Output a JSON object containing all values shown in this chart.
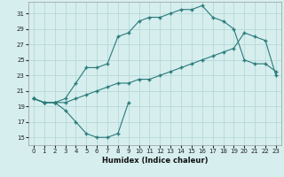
{
  "background_color": "#d6eeee",
  "grid_color": "#b8d8d8",
  "line_color": "#2a7a7a",
  "xlabel": "Humidex (Indice chaleur)",
  "xlim": [
    -0.5,
    23.5
  ],
  "ylim": [
    14.0,
    32.5
  ],
  "xticks": [
    0,
    1,
    2,
    3,
    4,
    5,
    6,
    7,
    8,
    9,
    10,
    11,
    12,
    13,
    14,
    15,
    16,
    17,
    18,
    19,
    20,
    21,
    22,
    23
  ],
  "yticks": [
    15,
    17,
    19,
    21,
    23,
    25,
    27,
    29,
    31
  ],
  "curve_top_x": [
    0,
    1,
    2,
    3,
    4,
    5,
    6,
    7,
    8,
    9,
    10,
    11,
    12,
    13,
    14,
    15,
    16,
    17,
    18,
    19,
    20,
    21,
    22,
    23
  ],
  "curve_top_y": [
    20,
    19.5,
    19.5,
    20,
    22,
    24,
    24,
    24.5,
    28,
    28.5,
    30,
    30.5,
    30.5,
    31,
    31.5,
    31.5,
    32,
    30.5,
    30,
    29,
    25,
    24.5,
    24.5,
    23.5
  ],
  "curve_mid_x": [
    0,
    1,
    2,
    3,
    4,
    5,
    6,
    7,
    8,
    9,
    10,
    11,
    12,
    13,
    14,
    15,
    16,
    17,
    18,
    19,
    20,
    21,
    22,
    23
  ],
  "curve_mid_y": [
    20,
    19.5,
    19.5,
    19.5,
    20,
    20.5,
    21,
    21.5,
    22,
    22,
    22.5,
    22.5,
    23,
    23.5,
    24,
    24.5,
    25,
    25.5,
    26,
    26.5,
    28.5,
    28,
    27.5,
    23.0
  ],
  "curve_bot_x": [
    0,
    1,
    2,
    3,
    4,
    5,
    6,
    7,
    8,
    9
  ],
  "curve_bot_y": [
    20,
    19.5,
    19.5,
    18.5,
    17,
    15.5,
    15,
    15,
    15.5,
    19.5
  ]
}
